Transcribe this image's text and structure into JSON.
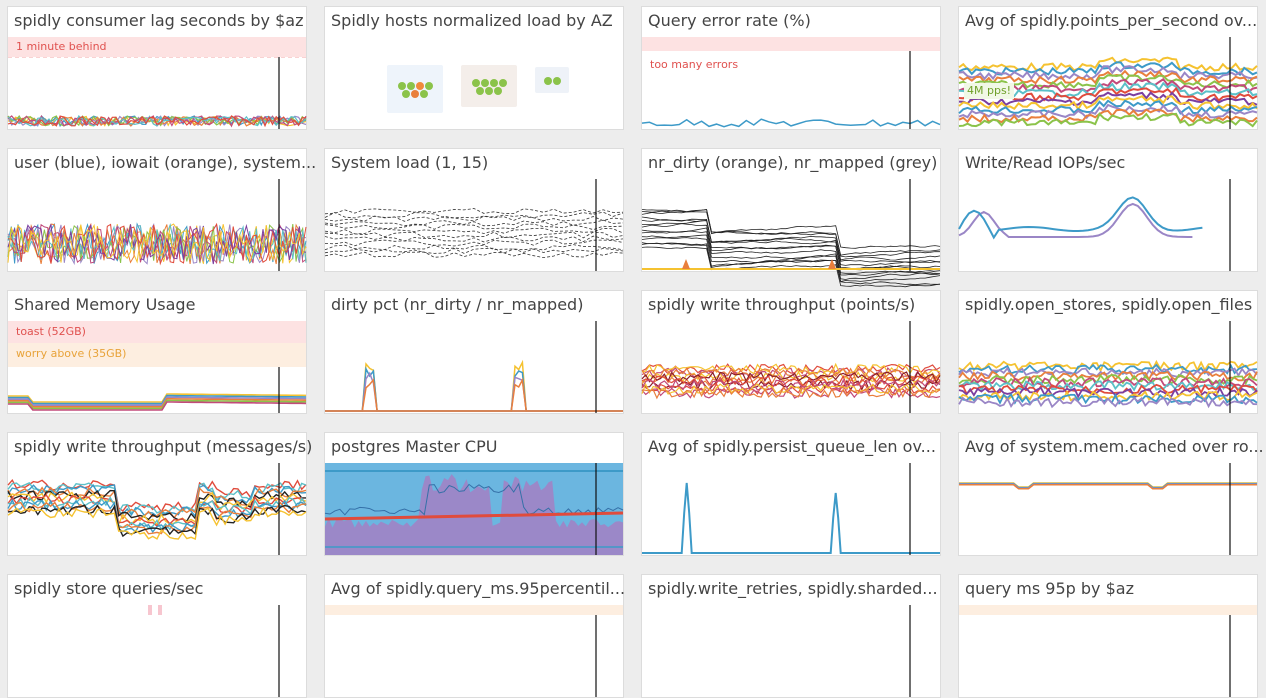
{
  "colors": {
    "palette": [
      "#f5c230",
      "#3d9ac8",
      "#9a86c6",
      "#e97f3c",
      "#8bc34a",
      "#c24a7a",
      "#5bc0c8",
      "#e04b3c",
      "#7b3fa0"
    ],
    "marker": "#111111",
    "red_band": "#fde2e2",
    "red_text": "#e0514f",
    "orange_band": "#fdeee0",
    "orange_text": "#e8a33a",
    "green_text": "#6fa02a",
    "line_blue": "#3d9ac8",
    "line_purple": "#9a86c6"
  },
  "tiles": [
    {
      "id": "t1",
      "title": "spidly consumer lag seconds by $az",
      "kind": "lag",
      "bands": [
        {
          "label": "1 minute behind",
          "tone": "red"
        }
      ]
    },
    {
      "id": "t2",
      "title": "Spidly hosts normalized load by AZ",
      "kind": "hexmap"
    },
    {
      "id": "t3",
      "title": "Query error rate (%)",
      "kind": "errors",
      "bands": [
        {
          "label": "too many errors",
          "tone": "red"
        }
      ]
    },
    {
      "id": "t4",
      "title": "Avg of spidly.points_per_second ov...",
      "kind": "pps",
      "bands": [
        {
          "label": "4M pps!",
          "tone": "green"
        }
      ]
    },
    {
      "id": "t5",
      "title": "user (blue), iowait (orange), system...",
      "kind": "cpu"
    },
    {
      "id": "t6",
      "title": "System load (1, 15)",
      "kind": "load"
    },
    {
      "id": "t7",
      "title": "nr_dirty (orange), nr_mapped (grey)",
      "kind": "dirty"
    },
    {
      "id": "t8",
      "title": "Write/Read IOPs/sec",
      "kind": "iops"
    },
    {
      "id": "t9",
      "title": "Shared Memory Usage",
      "kind": "shm",
      "bands": [
        {
          "label": "toast (52GB)",
          "tone": "red"
        },
        {
          "label": "worry above (35GB)",
          "tone": "orange"
        }
      ]
    },
    {
      "id": "t10",
      "title": "dirty pct (nr_dirty / nr_mapped)",
      "kind": "dirtypct"
    },
    {
      "id": "t11",
      "title": "spidly write throughput (points/s)",
      "kind": "wtp"
    },
    {
      "id": "t12",
      "title": "spidly.open_stores, spidly.open_files",
      "kind": "stores"
    },
    {
      "id": "t13",
      "title": "spidly write throughput (messages/s)",
      "kind": "wtm"
    },
    {
      "id": "t14",
      "title": "postgres Master CPU",
      "kind": "pgcpu"
    },
    {
      "id": "t15",
      "title": "Avg of spidly.persist_queue_len ov...",
      "kind": "queue"
    },
    {
      "id": "t16",
      "title": "Avg of system.mem.cached over ro...",
      "kind": "cached"
    },
    {
      "id": "t17",
      "title": "spidly store queries/sec",
      "kind": "partial"
    },
    {
      "id": "t18",
      "title": "Avg of spidly.query_ms.95percentil...",
      "kind": "partial"
    },
    {
      "id": "t19",
      "title": "spidly.write_retries, spidly.sharded...",
      "kind": "partial"
    },
    {
      "id": "t20",
      "title": "query ms 95p by $az",
      "kind": "partial"
    }
  ]
}
